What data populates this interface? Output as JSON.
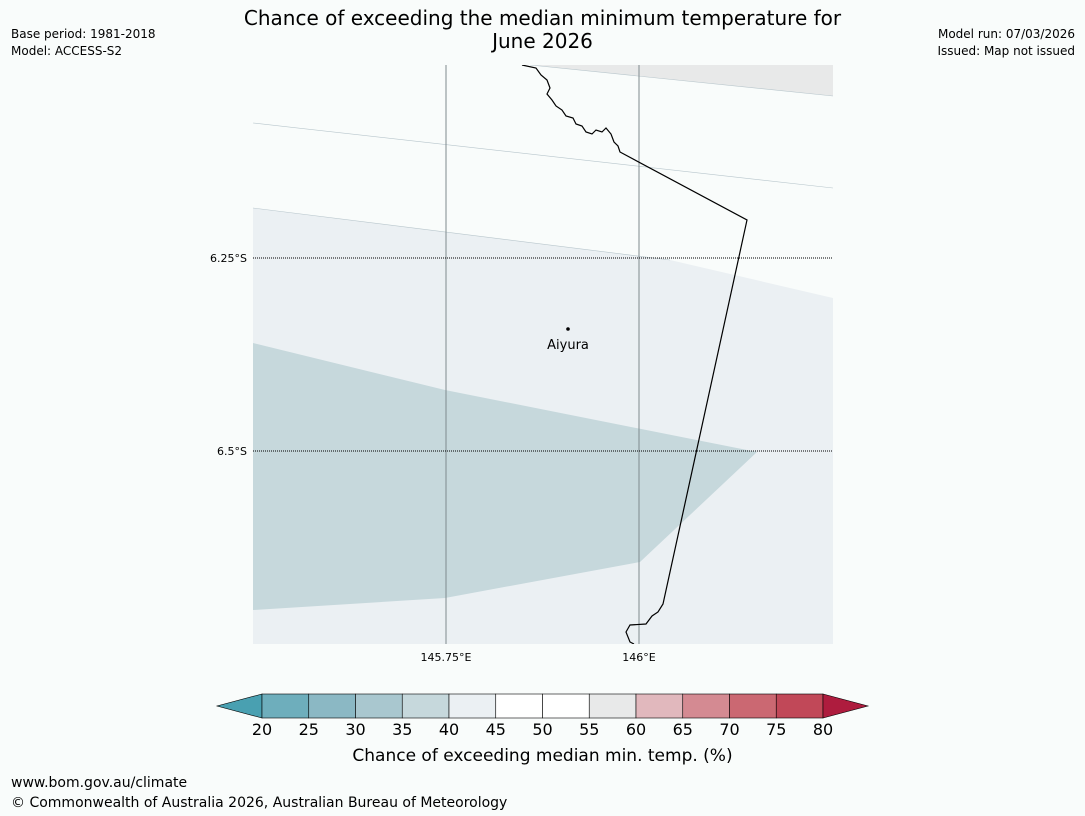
{
  "header": {
    "base_period": "Base period: 1981-2018",
    "model": "Model: ACCESS-S2",
    "model_run": "Model run: 07/03/2026",
    "issued": "Issued: Map not issued",
    "title_line1": "Chance of exceeding the median minimum temperature for",
    "title_line2": "June 2026"
  },
  "map": {
    "place_label": "Aiyura",
    "lat_labels": [
      "6.25°S",
      "6.5°S"
    ],
    "lon_labels": [
      "145.75°E",
      "146°E"
    ],
    "colors": {
      "band_40_45": "#ebf0f3",
      "band_35_40": "#c6d8dc",
      "band_55_60": "#e8e9e9",
      "background": "#f9fcfb",
      "gridline": "#7f8a8e"
    }
  },
  "colorbar": {
    "label": "Chance of exceeding median min. temp. (%)",
    "ticks": [
      "20",
      "25",
      "30",
      "35",
      "40",
      "45",
      "50",
      "55",
      "60",
      "65",
      "70",
      "75",
      "80"
    ],
    "colors": [
      "#49a0b1",
      "#6eaebc",
      "#8bb8c4",
      "#a9c7cf",
      "#c6d8dc",
      "#ebf0f3",
      "#ffffff",
      "#ffffff",
      "#e8e9e9",
      "#e1b8bd",
      "#d48a92",
      "#cb6872",
      "#c14858",
      "#ae1c3e"
    ]
  },
  "footer": {
    "url": "www.bom.gov.au/climate",
    "copyright": "© Commonwealth of Australia 2026, Australian Bureau of Meteorology"
  }
}
